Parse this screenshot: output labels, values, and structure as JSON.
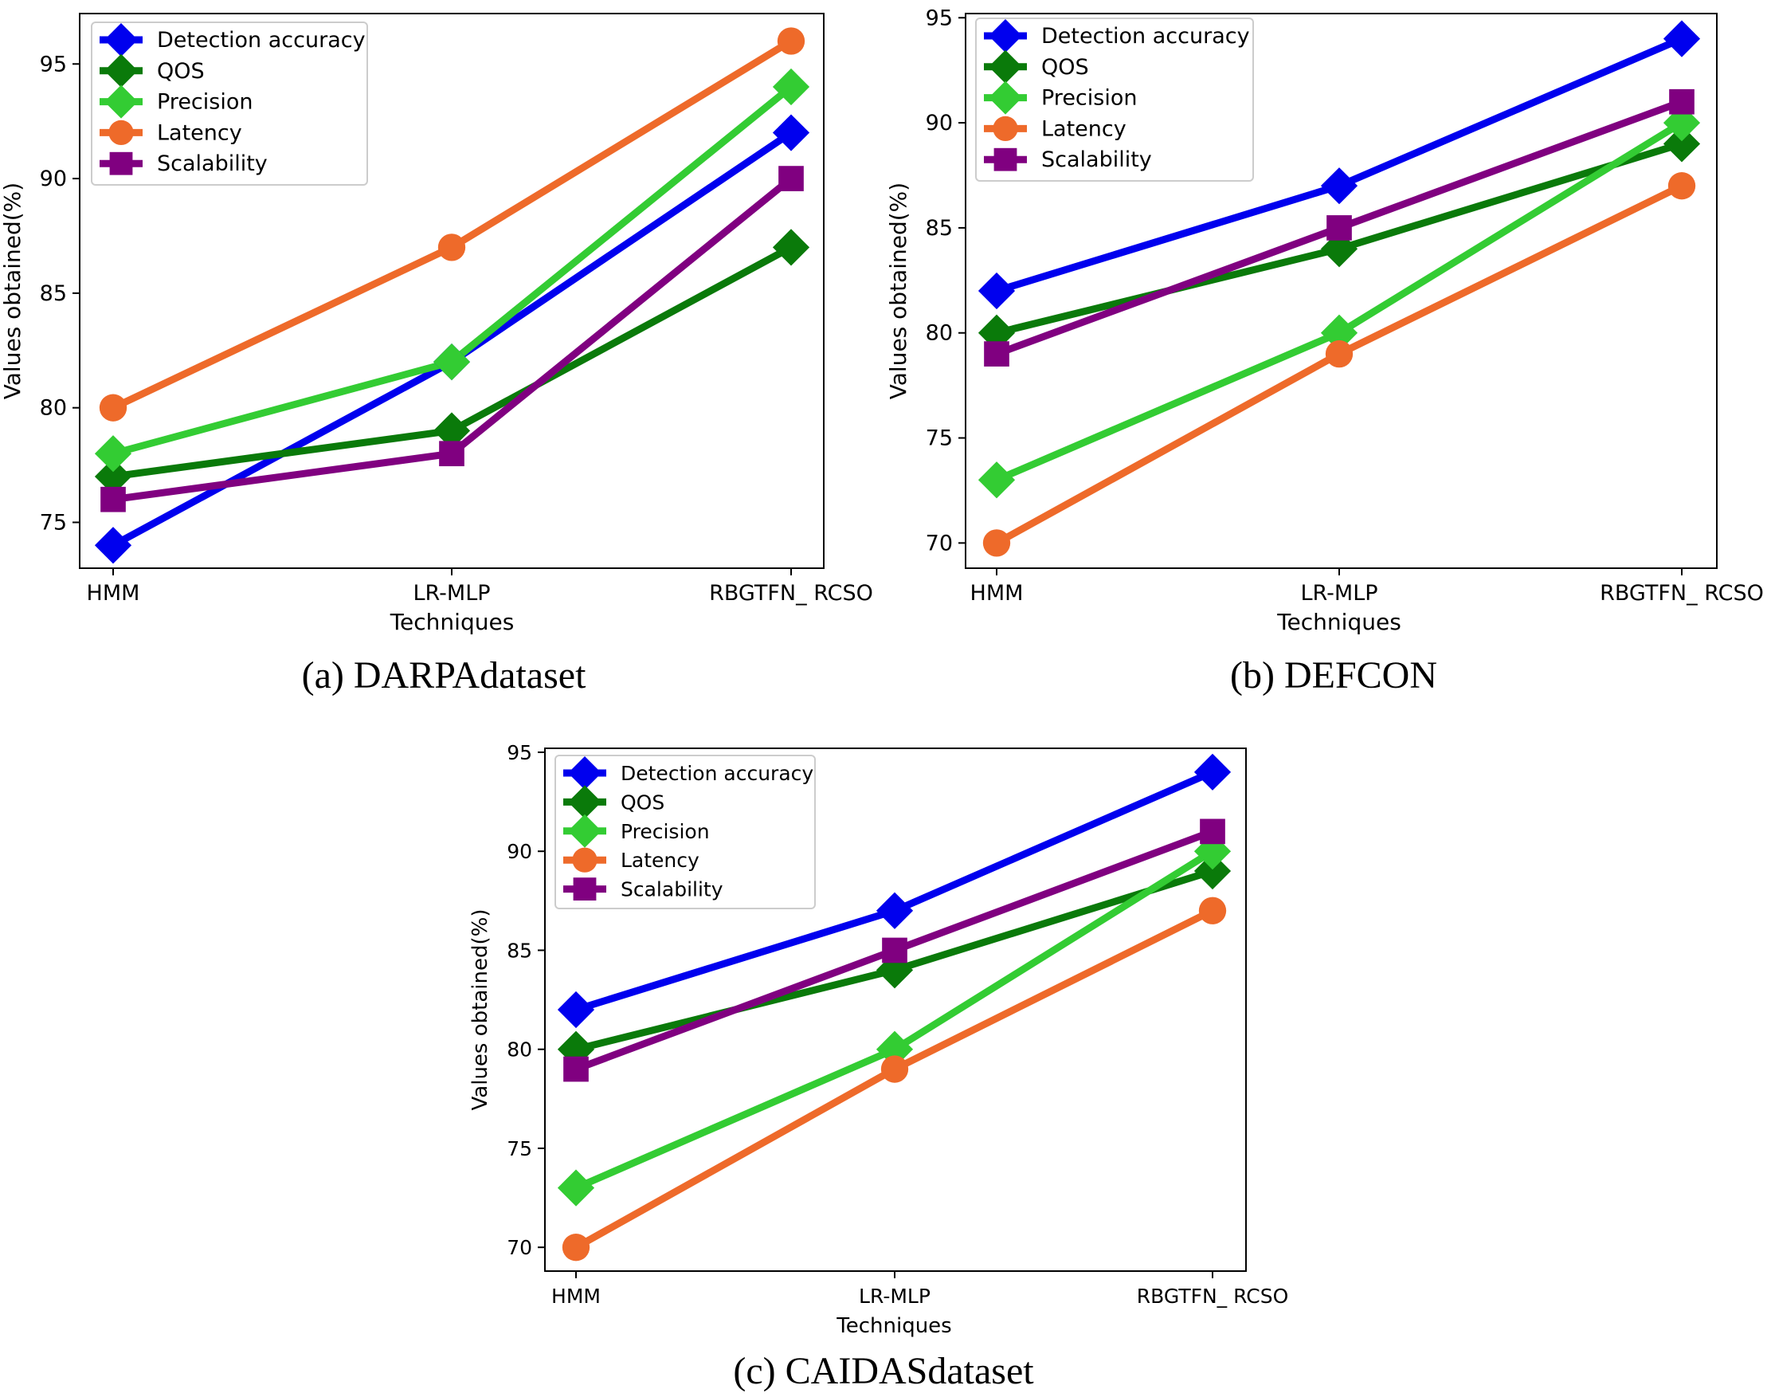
{
  "figure": {
    "series_styles": [
      {
        "name": "Detection accuracy",
        "color": "#0000ee",
        "marker": "diamond"
      },
      {
        "name": "QOS",
        "color": "#0a7a0a",
        "marker": "diamond"
      },
      {
        "name": "Precision",
        "color": "#33cc33",
        "marker": "diamond"
      },
      {
        "name": "Latency",
        "color": "#ee6a2a",
        "marker": "circle"
      },
      {
        "name": "Scalability",
        "color": "#800080",
        "marker": "square"
      }
    ]
  },
  "chart_data": [
    {
      "type": "line",
      "caption": "(a) DARPAdataset",
      "xlabel": "Techniques",
      "ylabel": "Values obtained(%)",
      "categories": [
        "HMM",
        "LR-MLP",
        "RBGTFN_ RCSO"
      ],
      "ylim": [
        73,
        97.2
      ],
      "yticks": [
        75,
        80,
        85,
        90,
        95
      ],
      "legend": "top-left",
      "series": [
        {
          "name": "Detection accuracy",
          "values": [
            74,
            82,
            92
          ]
        },
        {
          "name": "QOS",
          "values": [
            77,
            79,
            87
          ]
        },
        {
          "name": "Precision",
          "values": [
            78,
            82,
            94
          ]
        },
        {
          "name": "Latency",
          "values": [
            80,
            87,
            96
          ]
        },
        {
          "name": "Scalability",
          "values": [
            76,
            78,
            90
          ]
        }
      ]
    },
    {
      "type": "line",
      "caption": "(b) DEFCON",
      "xlabel": "Techniques",
      "ylabel": "Values obtained(%)",
      "categories": [
        "HMM",
        "LR-MLP",
        "RBGTFN_ RCSO"
      ],
      "ylim": [
        68.8,
        95.2
      ],
      "yticks": [
        70,
        75,
        80,
        85,
        90,
        95
      ],
      "legend": "top-left",
      "series": [
        {
          "name": "Detection accuracy",
          "values": [
            82,
            87,
            94
          ]
        },
        {
          "name": "QOS",
          "values": [
            80,
            84,
            89
          ]
        },
        {
          "name": "Precision",
          "values": [
            73,
            80,
            90
          ]
        },
        {
          "name": "Latency",
          "values": [
            70,
            79,
            87
          ]
        },
        {
          "name": "Scalability",
          "values": [
            79,
            85,
            91
          ]
        }
      ]
    },
    {
      "type": "line",
      "caption": "(c) CAIDASdataset",
      "xlabel": "Techniques",
      "ylabel": "Values obtained(%)",
      "categories": [
        "HMM",
        "LR-MLP",
        "RBGTFN_ RCSO"
      ],
      "ylim": [
        68.8,
        95.2
      ],
      "yticks": [
        70,
        75,
        80,
        85,
        90,
        95
      ],
      "legend": "top-left",
      "series": [
        {
          "name": "Detection accuracy",
          "values": [
            82,
            87,
            94
          ]
        },
        {
          "name": "QOS",
          "values": [
            80,
            84,
            89
          ]
        },
        {
          "name": "Precision",
          "values": [
            73,
            80,
            90
          ]
        },
        {
          "name": "Latency",
          "values": [
            70,
            79,
            87
          ]
        },
        {
          "name": "Scalability",
          "values": [
            79,
            85,
            91
          ]
        }
      ]
    }
  ]
}
